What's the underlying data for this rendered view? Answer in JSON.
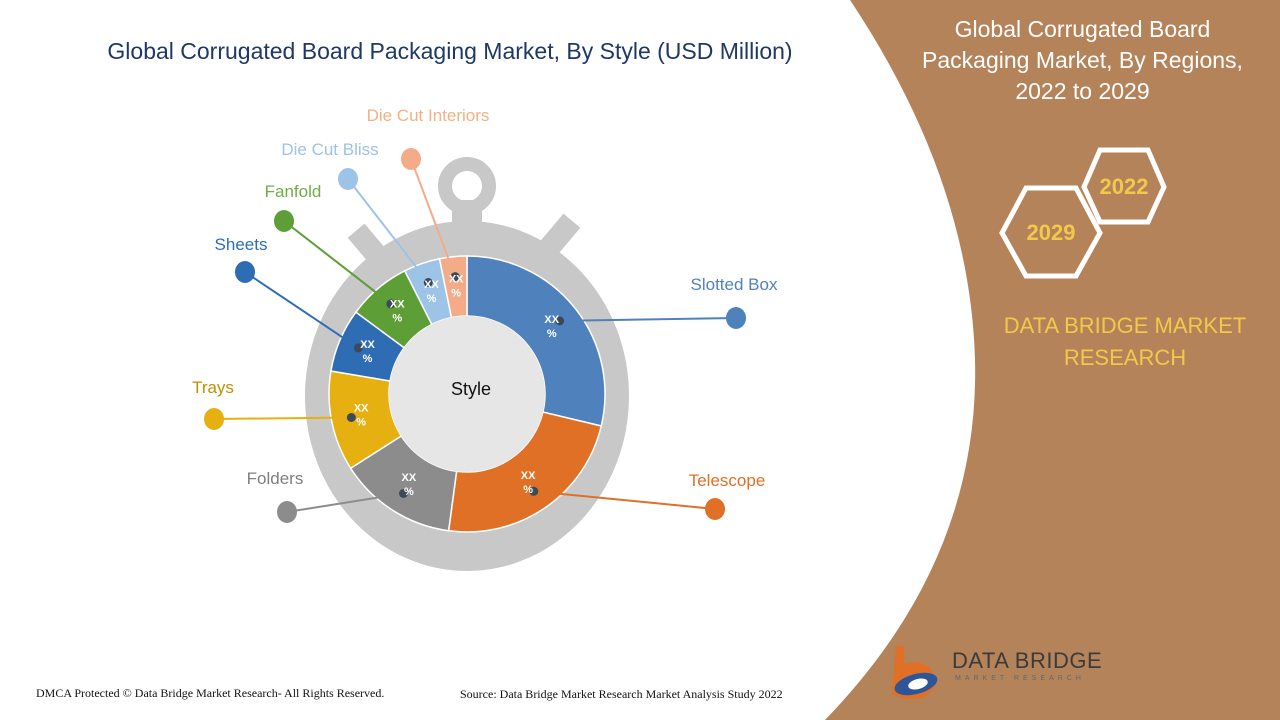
{
  "title": "Global Corrugated Board Packaging Market, By Style (USD Million)",
  "side_panel": {
    "title_lines": [
      "Global Corrugated Board",
      "Packaging Market, By Regions,",
      "2022 to 2029"
    ],
    "year_a": "2022",
    "year_b": "2029",
    "brand_lines": [
      "DATA BRIDGE MARKET",
      "RESEARCH"
    ],
    "panel_color": "#b5835a",
    "accent_color": "#f2c84b"
  },
  "logo": {
    "name": "DATA BRIDGE",
    "sub": "MARKET RESEARCH"
  },
  "footer": {
    "left": "DMCA Protected © Data Bridge Market Research- All Rights Reserved.",
    "right": "Source: Data Bridge Market Research Market Analysis Study 2022"
  },
  "chart_data": {
    "type": "pie",
    "center_label": "Style",
    "categories": [
      "Slotted Box",
      "Telescope",
      "Folders",
      "Trays",
      "Sheets",
      "Fanfold",
      "Die Cut Bliss",
      "Die Cut Interiors"
    ],
    "data_labels": [
      "XX\n%",
      "XX\n%",
      "XX\n%",
      "XX\n%",
      "XX\n%",
      "XX\n%",
      "XX\n%",
      "XX\n%"
    ],
    "values": [
      27,
      22,
      13,
      11,
      7,
      7,
      4,
      3
    ],
    "colors": [
      "#4f81bd",
      "#e07026",
      "#8c8c8c",
      "#e6b010",
      "#2e6db4",
      "#5e9e36",
      "#9dc3e6",
      "#f4ab88"
    ],
    "label_colors": [
      "#4f81bd",
      "#e07026",
      "#7f7f7f",
      "#bf9000",
      "#2e6db4",
      "#70ad47",
      "#9dc3e6",
      "#f4b183"
    ]
  }
}
